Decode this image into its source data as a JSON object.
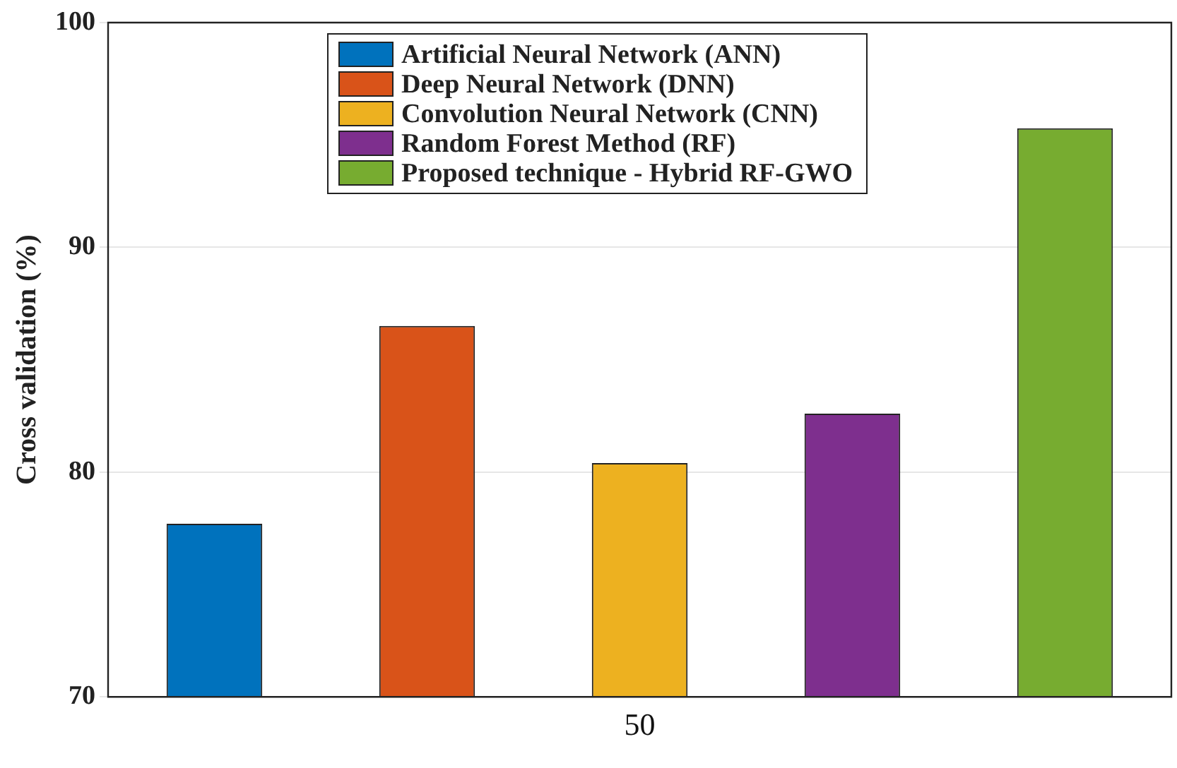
{
  "chart_data": {
    "type": "bar",
    "ylabel": "Cross validation (%)",
    "categories": [
      "50"
    ],
    "series": [
      {
        "name": "Artificial Neural Network (ANN)",
        "color": "#0072bd",
        "values": [
          77.7
        ]
      },
      {
        "name": "Deep Neural Network (DNN)",
        "color": "#d95319",
        "values": [
          86.5
        ]
      },
      {
        "name": "Convolution Neural Network (CNN)",
        "color": "#edb120",
        "values": [
          80.4
        ]
      },
      {
        "name": "Random Forest Method (RF)",
        "color": "#7e2f8e",
        "values": [
          82.6
        ]
      },
      {
        "name": "Proposed technique - Hybrid RF-GWO",
        "color": "#77ac30",
        "values": [
          95.3
        ]
      }
    ],
    "ylim": [
      70,
      100
    ],
    "yticks": [
      70,
      80,
      90,
      100
    ],
    "grid": "y",
    "legend": "top"
  }
}
